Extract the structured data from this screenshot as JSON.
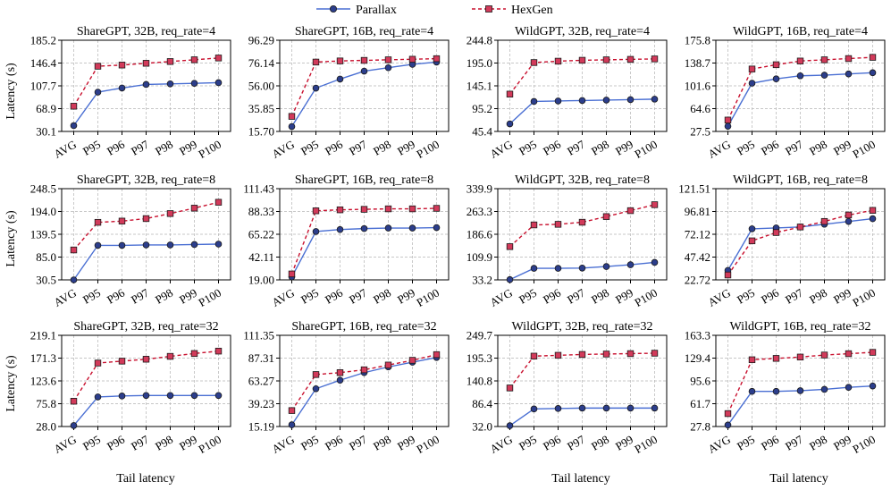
{
  "legend": {
    "position": "top-center",
    "entries": [
      {
        "label": "Parallax",
        "color": "#4a6fd3",
        "marker_fill": "#2c3e8c",
        "line_style": "solid"
      },
      {
        "label": "HexGen",
        "color": "#c8102e",
        "marker_fill": "#d23a5a",
        "line_style": "dashed"
      }
    ]
  },
  "shared": {
    "categories": [
      "AVG",
      "P95",
      "P96",
      "P97",
      "P98",
      "P99",
      "P100"
    ],
    "ylabel": "Latency (s)",
    "xlabel": "Tail latency",
    "grid": true
  },
  "chart_data": [
    {
      "type": "line",
      "title": "ShareGPT, 32B, req_rate=4",
      "yticks": [
        "30.1",
        "68.9",
        "107.7",
        "146.4",
        "185.2"
      ],
      "ylim": [
        30.1,
        185.2
      ],
      "series": [
        {
          "name": "Parallax",
          "values": [
            40,
            97,
            104,
            110,
            111,
            112,
            113
          ]
        },
        {
          "name": "HexGen",
          "values": [
            73,
            141,
            143,
            146,
            149,
            152,
            155
          ]
        }
      ]
    },
    {
      "type": "line",
      "title": "ShareGPT, 16B, req_rate=4",
      "yticks": [
        "15.70",
        "35.85",
        "56.00",
        "76.14",
        "96.29"
      ],
      "ylim": [
        15.7,
        96.29
      ],
      "series": [
        {
          "name": "Parallax",
          "values": [
            20,
            54,
            62,
            69,
            72,
            75,
            77
          ]
        },
        {
          "name": "HexGen",
          "values": [
            29,
            77,
            78,
            78.5,
            79,
            79.5,
            80
          ]
        }
      ]
    },
    {
      "type": "line",
      "title": "WildGPT, 32B, req_rate=4",
      "yticks": [
        "45.4",
        "95.2",
        "145.1",
        "195.0",
        "244.8"
      ],
      "ylim": [
        45.4,
        244.8
      ],
      "series": [
        {
          "name": "Parallax",
          "values": [
            62,
            111,
            112,
            113,
            114,
            115,
            116
          ]
        },
        {
          "name": "HexGen",
          "values": [
            127,
            196,
            199,
            201,
            202,
            203,
            204
          ]
        }
      ]
    },
    {
      "type": "line",
      "title": "WildGPT, 16B, req_rate=4",
      "yticks": [
        "27.5",
        "64.6",
        "101.6",
        "138.7",
        "175.8"
      ],
      "ylim": [
        27.5,
        175.8
      ],
      "series": [
        {
          "name": "Parallax",
          "values": [
            36,
            106,
            113,
            118,
            119,
            121,
            123
          ]
        },
        {
          "name": "HexGen",
          "values": [
            46,
            129,
            136,
            142,
            144,
            146,
            148
          ]
        }
      ]
    },
    {
      "type": "line",
      "title": "ShareGPT, 32B, req_rate=8",
      "yticks": [
        "30.5",
        "85.0",
        "139.5",
        "194.0",
        "248.5"
      ],
      "ylim": [
        30.5,
        248.5
      ],
      "series": [
        {
          "name": "Parallax",
          "values": [
            30.5,
            113,
            113,
            114,
            114,
            115,
            116
          ]
        },
        {
          "name": "HexGen",
          "values": [
            102,
            168,
            171,
            177,
            189,
            202,
            216
          ]
        }
      ]
    },
    {
      "type": "line",
      "title": "ShareGPT, 16B, req_rate=8",
      "yticks": [
        "19.00",
        "42.11",
        "65.22",
        "88.33",
        "111.43"
      ],
      "ylim": [
        19.0,
        111.43
      ],
      "series": [
        {
          "name": "Parallax",
          "values": [
            22,
            68,
            70,
            71,
            71.5,
            71.5,
            72
          ]
        },
        {
          "name": "HexGen",
          "values": [
            25,
            89,
            90,
            90.5,
            91,
            91,
            91.5
          ]
        }
      ]
    },
    {
      "type": "line",
      "title": "WildGPT, 32B, req_rate=8",
      "yticks": [
        "33.2",
        "109.9",
        "186.6",
        "263.3",
        "339.9"
      ],
      "ylim": [
        33.2,
        339.9
      ],
      "series": [
        {
          "name": "Parallax",
          "values": [
            34,
            72,
            72,
            73,
            78,
            84,
            92
          ]
        },
        {
          "name": "HexGen",
          "values": [
            145,
            218,
            220,
            227,
            246,
            266,
            286
          ]
        }
      ]
    },
    {
      "type": "line",
      "title": "WildGPT, 16B, req_rate=8",
      "yticks": [
        "22.72",
        "47.42",
        "72.12",
        "96.81",
        "121.51"
      ],
      "ylim": [
        22.72,
        121.51
      ],
      "series": [
        {
          "name": "Parallax",
          "values": [
            33,
            78,
            79,
            80,
            83,
            86,
            89
          ]
        },
        {
          "name": "HexGen",
          "values": [
            28,
            65,
            74,
            80,
            86,
            93,
            98
          ]
        }
      ]
    },
    {
      "type": "line",
      "title": "ShareGPT, 32B, req_rate=32",
      "yticks": [
        "28.0",
        "75.8",
        "123.6",
        "171.3",
        "219.1"
      ],
      "ylim": [
        28.0,
        219.1
      ],
      "series": [
        {
          "name": "Parallax",
          "values": [
            30,
            90,
            92,
            93,
            93,
            93,
            93
          ]
        },
        {
          "name": "HexGen",
          "values": [
            81,
            161,
            165,
            169,
            175,
            181,
            186
          ]
        }
      ]
    },
    {
      "type": "line",
      "title": "ShareGPT, 16B, req_rate=32",
      "yticks": [
        "15.19",
        "39.23",
        "63.27",
        "87.31",
        "111.35"
      ],
      "ylim": [
        15.19,
        111.35
      ],
      "series": [
        {
          "name": "Parallax",
          "values": [
            17,
            55,
            64,
            72,
            78,
            83,
            88
          ]
        },
        {
          "name": "HexGen",
          "values": [
            32,
            70,
            72,
            75,
            80,
            85,
            91
          ]
        }
      ]
    },
    {
      "type": "line",
      "title": "WildGPT, 32B, req_rate=32",
      "yticks": [
        "32.0",
        "86.4",
        "140.8",
        "195.3",
        "249.7"
      ],
      "ylim": [
        32.0,
        249.7
      ],
      "series": [
        {
          "name": "Parallax",
          "values": [
            34,
            74,
            75,
            76,
            76,
            76,
            76
          ]
        },
        {
          "name": "HexGen",
          "values": [
            124,
            200,
            202,
            204,
            205,
            206,
            207
          ]
        }
      ]
    },
    {
      "type": "line",
      "title": "WildGPT, 16B, req_rate=32",
      "yticks": [
        "27.8",
        "61.7",
        "95.6",
        "129.4",
        "163.3"
      ],
      "ylim": [
        27.8,
        163.3
      ],
      "series": [
        {
          "name": "Parallax",
          "values": [
            30,
            80,
            80,
            81,
            83,
            86,
            88
          ]
        },
        {
          "name": "HexGen",
          "values": [
            47,
            127,
            129,
            131,
            134,
            136,
            138
          ]
        }
      ]
    }
  ]
}
